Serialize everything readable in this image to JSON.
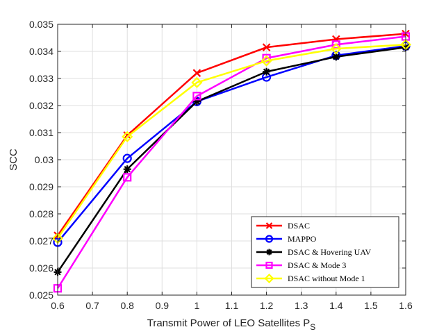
{
  "chart_data": {
    "type": "line",
    "title": "",
    "xlabel": "Transmit Power of LEO Satellites P",
    "xlabel_subscript": "S",
    "ylabel": "SCC",
    "xlim": [
      0.6,
      1.6
    ],
    "ylim": [
      0.025,
      0.035
    ],
    "grid": true,
    "legend_position": "bottom-right",
    "x_ticks": [
      0.6,
      0.7,
      0.8,
      0.9,
      1,
      1.1,
      1.2,
      1.3,
      1.4,
      1.5,
      1.6
    ],
    "x_tick_labels": [
      "0.6",
      "0.7",
      "0.8",
      "0.9",
      "1",
      "1.1",
      "1.2",
      "1.3",
      "1.4",
      "1.5",
      "1.6"
    ],
    "y_ticks": [
      0.025,
      0.026,
      0.027,
      0.028,
      0.029,
      0.03,
      0.031,
      0.032,
      0.033,
      0.034,
      0.035
    ],
    "y_tick_labels": [
      "0.025",
      "0.026",
      "0.027",
      "0.028",
      "0.029",
      "0.03",
      "0.031",
      "0.032",
      "0.033",
      "0.034",
      "0.035"
    ],
    "x": [
      0.6,
      0.8,
      1.0,
      1.2,
      1.4,
      1.6
    ],
    "series": [
      {
        "name": "DSAC",
        "color": "#ff0000",
        "marker": "x",
        "values": [
          0.0272,
          0.0309,
          0.0332,
          0.03415,
          0.03445,
          0.03465
        ]
      },
      {
        "name": "MAPPO",
        "color": "#0000ff",
        "marker": "circle",
        "values": [
          0.02695,
          0.03005,
          0.03215,
          0.03305,
          0.03385,
          0.0342
        ]
      },
      {
        "name": "DSAC & Hovering UAV",
        "color": "#000000",
        "marker": "asterisk",
        "values": [
          0.02585,
          0.02965,
          0.03215,
          0.03325,
          0.0338,
          0.03415
        ]
      },
      {
        "name": "DSAC & Mode 3",
        "color": "#ff00ff",
        "marker": "square",
        "values": [
          0.02525,
          0.02935,
          0.03235,
          0.03375,
          0.03425,
          0.03455
        ]
      },
      {
        "name": "DSAC without Mode 1",
        "color": "#ffff00",
        "marker": "diamond",
        "values": [
          0.0271,
          0.03085,
          0.03285,
          0.03365,
          0.0341,
          0.03425
        ]
      }
    ]
  }
}
